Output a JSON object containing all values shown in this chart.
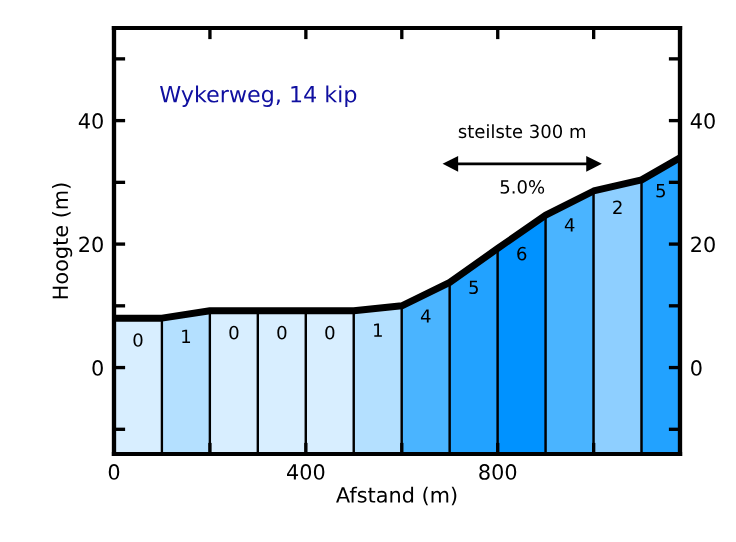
{
  "chart_data": {
    "type": "line",
    "title": "Wykerweg, 14 kip",
    "xlabel": "Afstand (m)",
    "ylabel": "Hoogte (m)",
    "x": [
      0,
      100,
      200,
      300,
      400,
      500,
      600,
      700,
      800,
      900,
      1000,
      1100,
      1180
    ],
    "series": [
      {
        "color": "#000000",
        "values": [
          8,
          8,
          9.2,
          9.2,
          9.2,
          9.2,
          10,
          13.8,
          19.3,
          24.7,
          28.6,
          30.4,
          34
        ]
      },
      {
        "type": "line",
        "color": "#000000",
        "marker": "triangle",
        "x": [
          703,
          999
        ],
        "values": [
          33,
          33
        ]
      }
    ],
    "bands": [
      {
        "axis": "x",
        "from": 0,
        "to": 100,
        "label": "0",
        "color": "#d8eeff"
      },
      {
        "axis": "x",
        "from": 100,
        "to": 200,
        "label": "1",
        "color": "#b4e0ff"
      },
      {
        "axis": "x",
        "from": 200,
        "to": 300,
        "label": "0",
        "color": "#d8eeff"
      },
      {
        "axis": "x",
        "from": 300,
        "to": 400,
        "label": "0",
        "color": "#d8eeff"
      },
      {
        "axis": "x",
        "from": 400,
        "to": 500,
        "label": "0",
        "color": "#d8eeff"
      },
      {
        "axis": "x",
        "from": 500,
        "to": 600,
        "label": "1",
        "color": "#b4e0ff"
      },
      {
        "axis": "x",
        "from": 600,
        "to": 700,
        "label": "4",
        "color": "#4ab4ff"
      },
      {
        "axis": "x",
        "from": 700,
        "to": 800,
        "label": "5",
        "color": "#22a2ff"
      },
      {
        "axis": "x",
        "from": 800,
        "to": 900,
        "label": "6",
        "color": "#0092ff"
      },
      {
        "axis": "x",
        "from": 900,
        "to": 1000,
        "label": "4",
        "color": "#4ab4ff"
      },
      {
        "axis": "x",
        "from": 1000,
        "to": 1100,
        "label": "2",
        "color": "#8ecfff"
      },
      {
        "axis": "x",
        "from": 1100,
        "to": 1180,
        "label": "5",
        "color": "#22a2ff"
      }
    ],
    "annotations": [
      "steilste 300 m",
      "5.0%"
    ],
    "xlim": [
      0,
      1180
    ],
    "ylim": [
      -14,
      55
    ],
    "xticks": [
      0,
      {
        "value": 200,
        "label": null
      },
      400,
      {
        "value": 600,
        "label": null
      },
      800,
      {
        "value": 1000,
        "label": null
      }
    ],
    "yticks": [
      {
        "value": -10,
        "label": null
      },
      0,
      {
        "value": 10,
        "label": null
      },
      20,
      {
        "value": 30,
        "label": null
      },
      40,
      {
        "value": 50,
        "label": null
      }
    ],
    "y2lim": [
      -14,
      55
    ],
    "y2ticks": [
      {
        "value": -10,
        "label": null
      },
      0,
      {
        "value": 10,
        "label": null
      },
      20,
      {
        "value": 30,
        "label": null
      },
      40,
      {
        "value": 50,
        "label": null
      }
    ],
    "grid": false,
    "legend": false
  }
}
